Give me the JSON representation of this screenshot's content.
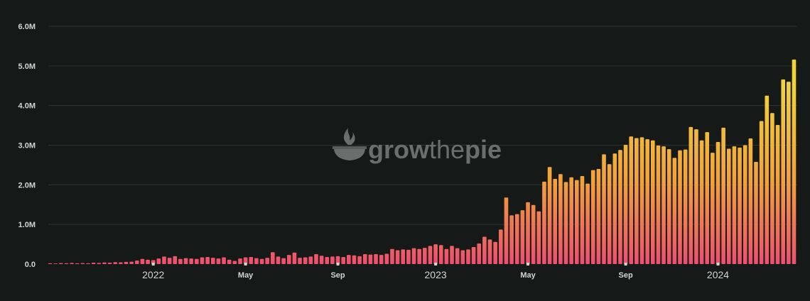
{
  "chart_data": {
    "type": "bar",
    "title": "",
    "xlabel": "",
    "ylabel": "",
    "ylim": [
      0,
      6000000
    ],
    "y_ticks": [
      {
        "value": 0,
        "label": "0.0"
      },
      {
        "value": 1000000,
        "label": "1.0M"
      },
      {
        "value": 2000000,
        "label": "2.0M"
      },
      {
        "value": 3000000,
        "label": "3.0M"
      },
      {
        "value": 4000000,
        "label": "4.0M"
      },
      {
        "value": 5000000,
        "label": "5.0M"
      },
      {
        "value": 6000000,
        "label": "6.0M"
      }
    ],
    "x_ticks": [
      {
        "label": "2022",
        "bar_index": 19,
        "major": true
      },
      {
        "label": "May",
        "bar_index": 36,
        "major": false
      },
      {
        "label": "Sep",
        "bar_index": 53,
        "major": false
      },
      {
        "label": "2023",
        "bar_index": 71,
        "major": true
      },
      {
        "label": "May",
        "bar_index": 88,
        "major": false
      },
      {
        "label": "Sep",
        "bar_index": 106,
        "major": false
      },
      {
        "label": "2024",
        "bar_index": 123,
        "major": true
      }
    ],
    "grid": true,
    "legend": "none",
    "colors": {
      "bar_top": "#f2d23a",
      "bar_mid": "#f4a13a",
      "bar_bottom": "#ee4f6e"
    },
    "values": [
      20000,
      15000,
      25000,
      20000,
      30000,
      20000,
      25000,
      20000,
      35000,
      30000,
      40000,
      35000,
      50000,
      45000,
      55000,
      60000,
      90000,
      130000,
      110000,
      100000,
      140000,
      190000,
      160000,
      200000,
      130000,
      150000,
      140000,
      130000,
      170000,
      180000,
      160000,
      140000,
      170000,
      110000,
      80000,
      140000,
      170000,
      180000,
      150000,
      130000,
      160000,
      300000,
      190000,
      150000,
      230000,
      290000,
      160000,
      170000,
      190000,
      250000,
      210000,
      180000,
      190000,
      200000,
      180000,
      230000,
      220000,
      200000,
      250000,
      240000,
      250000,
      230000,
      260000,
      380000,
      350000,
      370000,
      360000,
      400000,
      380000,
      410000,
      460000,
      500000,
      480000,
      380000,
      460000,
      400000,
      350000,
      370000,
      430000,
      520000,
      690000,
      620000,
      560000,
      870000,
      1680000,
      1230000,
      1260000,
      1360000,
      1560000,
      1490000,
      1330000,
      2080000,
      2450000,
      2150000,
      2270000,
      2070000,
      2190000,
      2120000,
      2220000,
      2030000,
      2370000,
      2400000,
      2770000,
      2520000,
      2790000,
      2880000,
      3010000,
      3220000,
      3180000,
      3200000,
      3150000,
      3120000,
      2990000,
      2970000,
      2900000,
      2680000,
      2870000,
      2890000,
      3460000,
      3400000,
      3120000,
      3330000,
      2810000,
      3080000,
      3440000,
      2910000,
      2970000,
      2940000,
      3000000,
      3170000,
      2580000,
      3610000,
      4250000,
      3810000,
      3510000,
      4660000,
      4600000,
      5160000
    ]
  },
  "watermark": {
    "brand_grow": "grow",
    "brand_the": "the",
    "brand_pie": "pie",
    "icon": "growthepie-logo-icon"
  }
}
